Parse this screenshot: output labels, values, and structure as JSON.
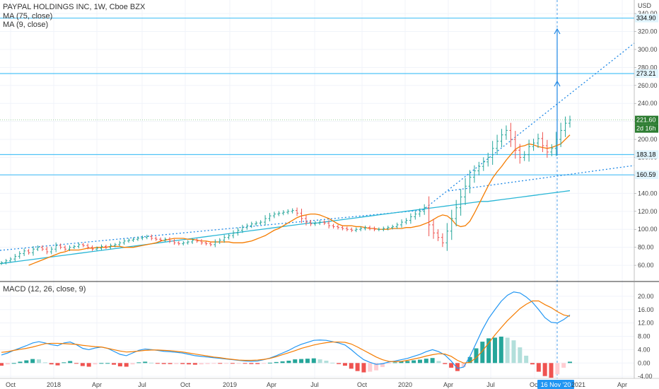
{
  "header": {
    "title": "PAYPAL HOLDINGS INC, 1W, Cboe BZX",
    "ma1_label": "MA (75, close)",
    "ma2_label": "MA (9, close)",
    "macd_label": "MACD (12, 26, close, 9)",
    "currency": "USD"
  },
  "colors": {
    "up": "#26a69a",
    "down": "#ef5350",
    "ma75": "#29b6d6",
    "ma9": "#f57c00",
    "macd_line": "#2196f3",
    "signal_line": "#f57c00",
    "hline": "#4fc3f7",
    "trend": "#1e88e5",
    "price_label": "#2e7d32"
  },
  "chart_data": [
    {
      "type": "candlestick",
      "pane": "price",
      "ylim": [
        42,
        355
      ],
      "y_ticks": [
        60,
        80,
        100,
        120,
        140,
        160,
        180,
        200,
        220,
        240,
        260,
        280,
        300,
        320,
        340
      ],
      "x_tick_labels": [
        "Oct",
        "2018",
        "Apr",
        "Jul",
        "Oct",
        "2019",
        "Apr",
        "Jul",
        "Oct",
        "2020",
        "Apr",
        "Jul",
        "Oct",
        "16 Nov '20",
        "2021",
        "Apr"
      ],
      "horizontal_levels": [
        {
          "value": 334.9,
          "label": "334.90"
        },
        {
          "value": 273.21,
          "label": "273.21"
        },
        {
          "value": 183.18,
          "label": "183.18"
        },
        {
          "value": 160.59,
          "label": "160.59"
        }
      ],
      "last_price": {
        "value": 221.6,
        "label": "221.60",
        "countdown": "2d 16h"
      },
      "closes": [
        63,
        65,
        67,
        70,
        73,
        76,
        74,
        78,
        80,
        78,
        75,
        78,
        82,
        80,
        78,
        80,
        81,
        83,
        82,
        80,
        78,
        79,
        81,
        80,
        82,
        83,
        85,
        87,
        88,
        89,
        90,
        91,
        92,
        90,
        89,
        88,
        89,
        87,
        85,
        84,
        85,
        86,
        88,
        87,
        85,
        84,
        83,
        86,
        88,
        91,
        93,
        96,
        99,
        102,
        104,
        106,
        107,
        108,
        112,
        115,
        117,
        118,
        119,
        120,
        121,
        118,
        112,
        108,
        106,
        107,
        108,
        107,
        104,
        103,
        102,
        101,
        100,
        99,
        100,
        101,
        102,
        101,
        100,
        100,
        101,
        102,
        103,
        105,
        108,
        110,
        114,
        117,
        120,
        124,
        105,
        96,
        91,
        85,
        98,
        112,
        124,
        136,
        148,
        158,
        165,
        170,
        175,
        180,
        190,
        198,
        205,
        210,
        200,
        188,
        180,
        183,
        192,
        196,
        201,
        193,
        186,
        190,
        200,
        210,
        218,
        221.6
      ],
      "ma75": [
        62,
        63,
        64,
        65,
        66,
        67,
        68,
        69,
        70,
        71,
        72,
        73,
        74,
        75,
        76,
        77,
        78,
        79,
        80,
        81,
        82,
        83,
        84,
        85,
        86,
        87,
        88,
        89,
        90,
        91,
        92,
        93,
        94,
        95,
        96,
        97,
        98,
        99,
        100,
        101,
        102,
        103,
        104,
        105,
        106,
        107,
        107,
        108,
        109,
        110,
        111,
        112,
        113,
        114,
        115,
        116,
        117,
        118,
        119,
        120,
        121,
        122,
        123,
        124,
        125,
        126,
        127,
        128,
        129,
        130,
        131,
        131,
        132,
        133,
        134,
        135,
        136,
        137,
        138,
        139,
        140,
        141,
        142,
        143
      ],
      "ma9": [
        60,
        62,
        64,
        66,
        68,
        70,
        72,
        74,
        75,
        77,
        77,
        77,
        78,
        79,
        79,
        80,
        80,
        80,
        81,
        81,
        81,
        80,
        80,
        80,
        81,
        82,
        83,
        84,
        85,
        87,
        88,
        89,
        90,
        90,
        90,
        89,
        89,
        88,
        87,
        87,
        86,
        86,
        86,
        86,
        86,
        85,
        85,
        85,
        86,
        87,
        89,
        91,
        93,
        96,
        99,
        101,
        104,
        107,
        110,
        113,
        115,
        116,
        117,
        117,
        116,
        114,
        112,
        109,
        106,
        104,
        104,
        104,
        103,
        103,
        102,
        101,
        101,
        100,
        100,
        100,
        101,
        101,
        101,
        102,
        102,
        103,
        104,
        106,
        108,
        111,
        114,
        116,
        115,
        111,
        105,
        103,
        104,
        109,
        118,
        128,
        138,
        148,
        157,
        164,
        170,
        177,
        183,
        189,
        192,
        193,
        195,
        194,
        192,
        191,
        190,
        191,
        193,
        195,
        200,
        205
      ]
    },
    {
      "type": "macd",
      "pane": "macd",
      "ylim": [
        -4.6,
        24
      ],
      "y_ticks": [
        -4,
        0,
        4,
        8,
        12,
        16,
        20
      ],
      "macd": [
        2.4,
        3,
        3.8,
        4.5,
        5.2,
        6,
        6.4,
        6,
        5.5,
        5.2,
        6,
        6.3,
        5.5,
        4.4,
        4,
        4.5,
        4.8,
        4.4,
        3.5,
        2.6,
        2.2,
        3,
        3.8,
        4.2,
        4,
        3.8,
        3.5,
        3.4,
        3.2,
        3,
        2.6,
        2.2,
        2,
        1.8,
        1.6,
        1.4,
        1.2,
        1,
        0.8,
        0.6,
        0.5,
        0.6,
        1,
        1.5,
        2.2,
        3,
        3.8,
        4.8,
        5.6,
        6.2,
        6.8,
        6.9,
        6.8,
        6.4,
        6,
        5.4,
        4,
        2.4,
        1,
        0.2,
        -0.4,
        -0.2,
        0.3,
        0.6,
        1,
        1.4,
        2,
        2.6,
        3.4,
        4,
        3.4,
        2.4,
        0.6,
        -1.6,
        -1.2,
        2,
        6,
        10,
        13.4,
        16,
        18.5,
        20.3,
        21.3,
        21,
        19.8,
        18.2,
        16,
        13.6,
        12.2,
        12,
        13,
        14.4
      ],
      "signal": [
        3.2,
        3.4,
        3.8,
        4.1,
        4.4,
        4.8,
        5.3,
        5.8,
        5.9,
        5.9,
        5.8,
        5.7,
        5.6,
        5.3,
        5.1,
        4.9,
        4.8,
        4.4,
        4,
        3.6,
        3.3,
        3.4,
        3.6,
        3.8,
        3.9,
        3.9,
        3.8,
        3.7,
        3.5,
        3.3,
        3,
        2.7,
        2.4,
        2.1,
        1.8,
        1.6,
        1.3,
        1.1,
        0.9,
        0.8,
        0.8,
        0.9,
        1.1,
        1.4,
        1.9,
        2.5,
        3.1,
        3.7,
        4.4,
        4.9,
        5.4,
        5.8,
        6.1,
        6.3,
        6.3,
        6.2,
        5.7,
        4.8,
        3.8,
        2.8,
        1.8,
        1,
        0.5,
        0.4,
        0.5,
        0.8,
        1.2,
        1.6,
        2.1,
        2.5,
        2.8,
        2.7,
        2,
        0.8,
        0,
        0.2,
        1.6,
        3.6,
        6,
        8.4,
        10.6,
        12.7,
        14.5,
        16.3,
        17.6,
        18.6,
        18.6,
        17.5,
        16.6,
        15.4,
        14.4,
        14
      ]
    }
  ]
}
